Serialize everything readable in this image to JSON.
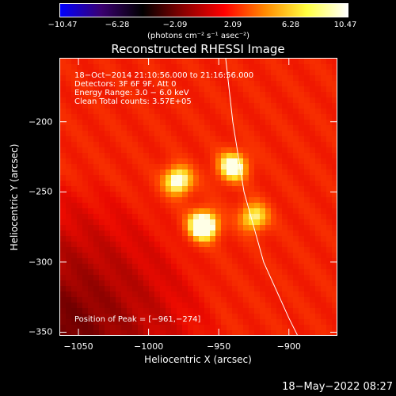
{
  "chart_data": {
    "type": "heatmap",
    "title": "Reconstructed RHESSI Image",
    "xlabel": "Heliocentric X (arcsec)",
    "ylabel": "Heliocentric Y (arcsec)",
    "xlim": [
      -1063,
      -866
    ],
    "ylim": [
      -352,
      -155
    ],
    "x_ticks": [
      "−1050",
      "−1000",
      "−950",
      "−900"
    ],
    "x_tick_values": [
      -1050,
      -1000,
      -950,
      -900
    ],
    "y_ticks": [
      "−200",
      "−250",
      "−300",
      "−350"
    ],
    "y_tick_values": [
      -200,
      -250,
      -300,
      -350
    ],
    "colorbar": {
      "min": -10.47,
      "max": 10.47,
      "tick_labels": [
        "−10.47",
        "−6.28",
        "−2.09",
        "2.09",
        "6.28",
        "10.47"
      ],
      "units": "(photons cm⁻² s⁻¹ asec⁻²)",
      "colors": [
        "#0000ff",
        "#3a0070",
        "#000000",
        "#8a0000",
        "#ff0000",
        "#ff8a00",
        "#ffff40",
        "#ffffff"
      ]
    },
    "annotations": [
      "18−Oct−2014 21:10:56.000 to 21:16:56.000",
      "Detectors: 3F 6F 9F, Att 0",
      "Energy Range: 3.0 − 6.0 keV",
      "Clean    Total counts: 3.57E+05"
    ],
    "peak_label": "Position of Peak = [−961,−274]",
    "sources": [
      {
        "x": -961,
        "y": -274,
        "intensity": 10.47
      },
      {
        "x": -979,
        "y": -242,
        "intensity": 8.6
      },
      {
        "x": -940,
        "y": -232,
        "intensity": 8.9
      },
      {
        "x": -925,
        "y": -268,
        "intensity": 7.6
      }
    ],
    "background_level": 6.0,
    "limb": [
      {
        "x": -945,
        "y": -155
      },
      {
        "x": -940,
        "y": -200
      },
      {
        "x": -932,
        "y": -250
      },
      {
        "x": -918,
        "y": -300
      },
      {
        "x": -900,
        "y": -340
      },
      {
        "x": -894,
        "y": -352
      }
    ]
  },
  "footer": "18−May−2022 08:27"
}
